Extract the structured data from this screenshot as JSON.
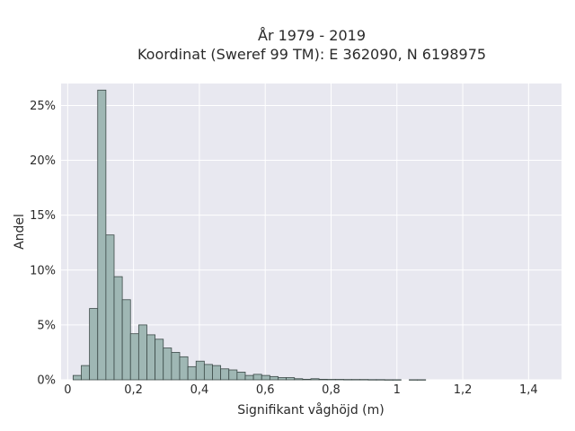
{
  "chart_data": {
    "type": "bar",
    "title": "År 1979 - 2019",
    "subtitle": "Koordinat (Sweref 99 TM): E 362090, N 6198975",
    "xlabel": "Signifikant våghöjd (m)",
    "ylabel": "Andel",
    "xlim": [
      -0.02,
      1.5
    ],
    "ylim": [
      0,
      0.27
    ],
    "xticks": [
      0,
      0.2,
      0.4,
      0.6,
      0.8,
      1.0,
      1.2,
      1.4
    ],
    "xtick_labels": [
      "0",
      "0,2",
      "0,4",
      "0,6",
      "0,8",
      "1",
      "1,2",
      "1,4"
    ],
    "yticks": [
      0,
      0.05,
      0.1,
      0.15,
      0.2,
      0.25
    ],
    "ytick_labels": [
      "0%",
      "5%",
      "10%",
      "15%",
      "20%",
      "25%"
    ],
    "grid": true,
    "bin_start": 0.0165,
    "bin_width": 0.0249,
    "values": [
      0.004,
      0.013,
      0.065,
      0.264,
      0.132,
      0.094,
      0.073,
      0.042,
      0.05,
      0.041,
      0.037,
      0.029,
      0.025,
      0.021,
      0.012,
      0.017,
      0.014,
      0.013,
      0.01,
      0.009,
      0.007,
      0.004,
      0.005,
      0.004,
      0.003,
      0.002,
      0.002,
      0.001,
      0.0005,
      0.001,
      0.0005,
      0.0004,
      0.0004,
      0.0003,
      0.0003,
      0.0003,
      0.0002,
      0.0002,
      0.0001,
      0.0001,
      0.0,
      0.0001,
      0.0001
    ],
    "bar_color": "#9fb7b4",
    "bar_edge": "#3c4a48",
    "plot_bg": "#e8e8f0",
    "grid_color": "#ffffff"
  }
}
